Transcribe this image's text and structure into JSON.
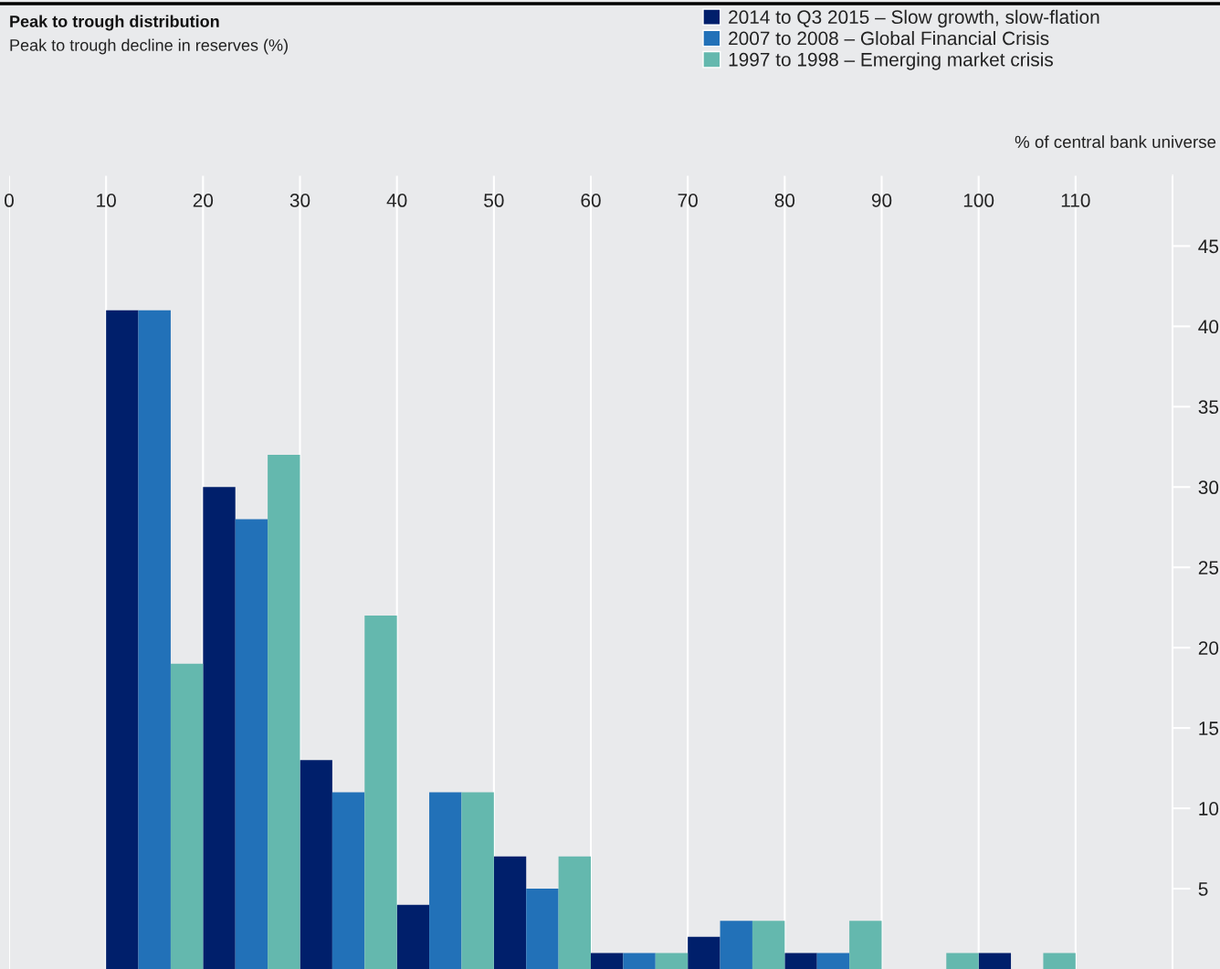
{
  "chart_data": {
    "type": "bar",
    "title": "Peak to trough distribution",
    "subtitle": "Peak to trough decline in reserves (%)",
    "ylabel": "% of central bank universe",
    "x": [
      15,
      25,
      35,
      45,
      55,
      65,
      75,
      85,
      95,
      105
    ],
    "series": [
      {
        "name": "2014 to Q3 2015 – Slow growth, slow-flation",
        "color": "#001f6b",
        "values": [
          41,
          30,
          13,
          4,
          7,
          1,
          2,
          1,
          null,
          1
        ]
      },
      {
        "name": "2007 to 2008 – Global Financial Crisis",
        "color": "#2271b8",
        "values": [
          41,
          28,
          11,
          11,
          5,
          1,
          3,
          1,
          null,
          null
        ]
      },
      {
        "name": "1997 to 1998 – Emerging market crisis",
        "color": "#64b8ae",
        "values": [
          19,
          32,
          22,
          11,
          7,
          1,
          3,
          3,
          1,
          1
        ]
      }
    ],
    "xlim": [
      0,
      120
    ],
    "xticks": [
      0,
      10,
      20,
      30,
      40,
      50,
      60,
      70,
      80,
      90,
      100,
      110
    ],
    "ylim": [
      0,
      49.4
    ],
    "yticks": [
      5,
      10,
      15,
      20,
      25,
      30,
      35,
      40,
      45
    ],
    "grid": "x",
    "legend": "top right"
  }
}
